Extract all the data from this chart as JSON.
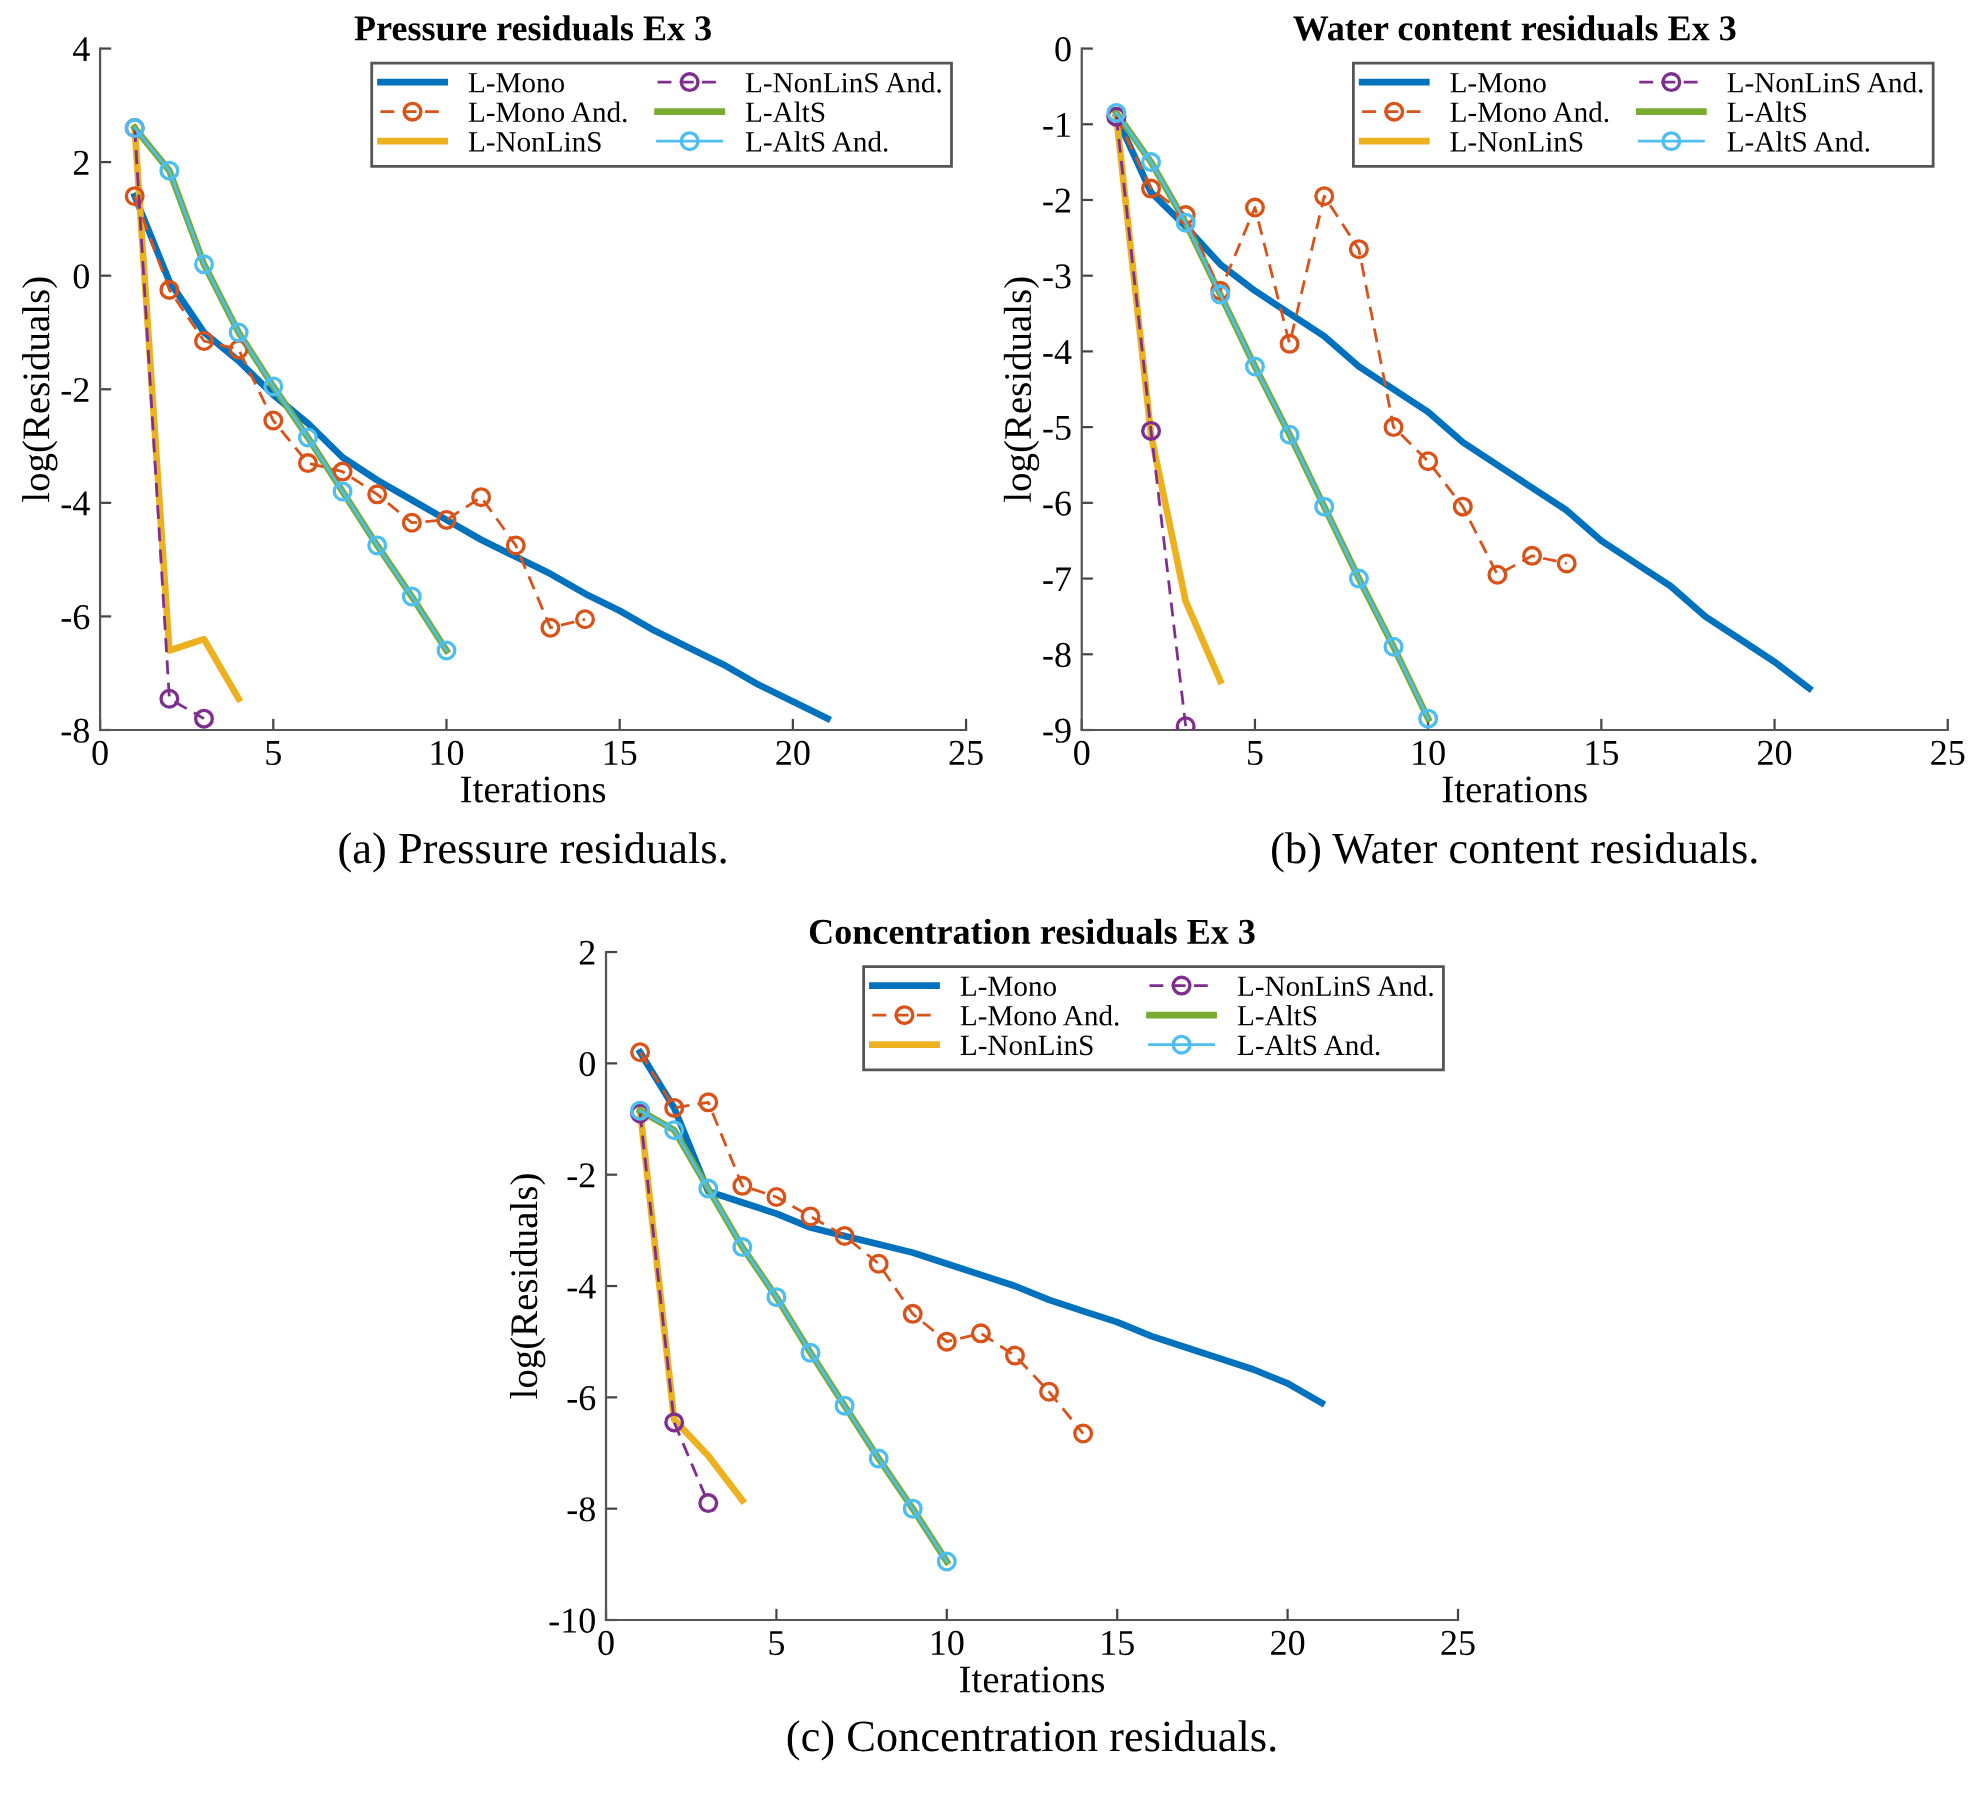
{
  "chart_data": [
    {
      "type": "line",
      "title": "Pressure residuals Ex 3",
      "xlabel": "Iterations",
      "ylabel": "log(Residuals)",
      "annotations": [
        "(a) Pressure residuals."
      ],
      "xlim": [
        0,
        25
      ],
      "xticks": [
        0,
        5,
        10,
        15,
        20,
        25
      ],
      "ylim": [
        -8,
        4
      ],
      "yticks": [
        -8,
        -6,
        -4,
        -2,
        0,
        2,
        4
      ],
      "legend": "top right",
      "series": [
        {
          "name": "L-Mono",
          "color": "#0072bd",
          "line_style": "solid",
          "marker": "none",
          "x": [
            1,
            2,
            3,
            4,
            5,
            6,
            7,
            8,
            9,
            10,
            11,
            12,
            13,
            14,
            15,
            16,
            17,
            18,
            19,
            20,
            21
          ],
          "values": [
            1.4,
            -0.1,
            -1.0,
            -1.5,
            -2.1,
            -2.6,
            -3.2,
            -3.6,
            -3.95,
            -4.3,
            -4.65,
            -4.95,
            -5.25,
            -5.6,
            -5.9,
            -6.25,
            -6.55,
            -6.85,
            -7.2,
            -7.5,
            -7.8
          ]
        },
        {
          "name": "L-Mono And.",
          "color": "#d95319",
          "line_style": "dashed",
          "marker": "circle",
          "x": [
            1,
            2,
            3,
            4,
            5,
            6,
            7,
            8,
            9,
            10,
            11,
            12,
            13,
            14
          ],
          "values": [
            1.4,
            -0.25,
            -1.15,
            -1.3,
            -2.55,
            -3.3,
            -3.45,
            -3.85,
            -4.35,
            -4.3,
            -3.9,
            -4.75,
            -6.2,
            -6.05
          ]
        },
        {
          "name": "L-NonLinS",
          "color": "#edb120",
          "line_style": "solid",
          "marker": "none",
          "x": [
            1,
            2,
            3,
            4
          ],
          "values": [
            2.6,
            -6.6,
            -6.4,
            -7.45
          ]
        },
        {
          "name": "L-NonLinS And.",
          "color": "#7e2f8e",
          "line_style": "dashed",
          "marker": "circle",
          "x": [
            1,
            2,
            3
          ],
          "values": [
            2.6,
            -7.45,
            -7.8
          ]
        },
        {
          "name": "L-AltS",
          "color": "#77ac30",
          "line_style": "solid",
          "marker": "none",
          "x": [
            1,
            2,
            3,
            4,
            5,
            6,
            7,
            8,
            9,
            10
          ],
          "values": [
            2.6,
            1.85,
            0.2,
            -1.0,
            -1.95,
            -2.85,
            -3.8,
            -4.75,
            -5.65,
            -6.6
          ]
        },
        {
          "name": "L-AltS And.",
          "color": "#4dbeee",
          "line_style": "solid",
          "marker": "circle",
          "x": [
            1,
            2,
            3,
            4,
            5,
            6,
            7,
            8,
            9,
            10
          ],
          "values": [
            2.6,
            1.85,
            0.2,
            -1.0,
            -1.95,
            -2.85,
            -3.8,
            -4.75,
            -5.65,
            -6.6
          ]
        }
      ]
    },
    {
      "type": "line",
      "title": "Water content residuals Ex 3",
      "xlabel": "Iterations",
      "ylabel": "log(Residuals)",
      "annotations": [
        "(b) Water content residuals."
      ],
      "xlim": [
        0,
        25
      ],
      "xticks": [
        0,
        5,
        10,
        15,
        20,
        25
      ],
      "ylim": [
        -9,
        0
      ],
      "yticks": [
        -9,
        -8,
        -7,
        -6,
        -5,
        -4,
        -3,
        -2,
        -1,
        0
      ],
      "legend": "top right",
      "series": [
        {
          "name": "L-Mono",
          "color": "#0072bd",
          "line_style": "solid",
          "marker": "none",
          "x": [
            1,
            2,
            3,
            4,
            5,
            6,
            7,
            8,
            9,
            10,
            11,
            12,
            13,
            14,
            15,
            16,
            17,
            18,
            19,
            20,
            21
          ],
          "values": [
            -0.9,
            -1.9,
            -2.35,
            -2.85,
            -3.2,
            -3.5,
            -3.8,
            -4.2,
            -4.5,
            -4.8,
            -5.2,
            -5.5,
            -5.8,
            -6.1,
            -6.5,
            -6.8,
            -7.1,
            -7.5,
            -7.8,
            -8.1,
            -8.45
          ]
        },
        {
          "name": "L-Mono And.",
          "color": "#d95319",
          "line_style": "dashed",
          "marker": "circle",
          "x": [
            1,
            2,
            3,
            4,
            5,
            6,
            7,
            8,
            9,
            10,
            11,
            12,
            13,
            14
          ],
          "values": [
            -0.9,
            -1.85,
            -2.2,
            -3.2,
            -2.1,
            -3.9,
            -1.95,
            -2.65,
            -5.0,
            -5.45,
            -6.05,
            -6.95,
            -6.7,
            -6.8
          ]
        },
        {
          "name": "L-NonLinS",
          "color": "#edb120",
          "line_style": "solid",
          "marker": "none",
          "x": [
            1,
            2,
            3,
            4
          ],
          "values": [
            -0.9,
            -5.1,
            -7.3,
            -8.35
          ]
        },
        {
          "name": "L-NonLinS And.",
          "color": "#7e2f8e",
          "line_style": "dashed",
          "marker": "circle",
          "x": [
            1,
            2,
            3
          ],
          "values": [
            -0.9,
            -5.05,
            -8.95
          ]
        },
        {
          "name": "L-AltS",
          "color": "#77ac30",
          "line_style": "solid",
          "marker": "none",
          "x": [
            1,
            2,
            3,
            4,
            5,
            6,
            7,
            8,
            9,
            10
          ],
          "values": [
            -0.85,
            -1.5,
            -2.3,
            -3.25,
            -4.2,
            -5.1,
            -6.05,
            -7.0,
            -7.9,
            -8.85
          ]
        },
        {
          "name": "L-AltS And.",
          "color": "#4dbeee",
          "line_style": "solid",
          "marker": "circle",
          "x": [
            1,
            2,
            3,
            4,
            5,
            6,
            7,
            8,
            9,
            10
          ],
          "values": [
            -0.85,
            -1.5,
            -2.3,
            -3.25,
            -4.2,
            -5.1,
            -6.05,
            -7.0,
            -7.9,
            -8.85
          ]
        }
      ]
    },
    {
      "type": "line",
      "title": "Concentration residuals Ex 3",
      "xlabel": "Iterations",
      "ylabel": "log(Residuals)",
      "annotations": [
        "(c) Concentration residuals."
      ],
      "xlim": [
        0,
        25
      ],
      "xticks": [
        0,
        5,
        10,
        15,
        20,
        25
      ],
      "ylim": [
        -10,
        2
      ],
      "yticks": [
        -10,
        -8,
        -6,
        -4,
        -2,
        0,
        2
      ],
      "legend": "top right",
      "series": [
        {
          "name": "L-Mono",
          "color": "#0072bd",
          "line_style": "solid",
          "marker": "none",
          "x": [
            1,
            2,
            3,
            4,
            5,
            6,
            7,
            8,
            9,
            10,
            11,
            12,
            13,
            14,
            15,
            16,
            17,
            18,
            19,
            20,
            21
          ],
          "values": [
            0.2,
            -0.8,
            -2.3,
            -2.5,
            -2.7,
            -2.95,
            -3.1,
            -3.25,
            -3.4,
            -3.6,
            -3.8,
            -4.0,
            -4.25,
            -4.45,
            -4.65,
            -4.9,
            -5.1,
            -5.3,
            -5.5,
            -5.75,
            -6.1
          ]
        },
        {
          "name": "L-Mono And.",
          "color": "#d95319",
          "line_style": "dashed",
          "marker": "circle",
          "x": [
            1,
            2,
            3,
            4,
            5,
            6,
            7,
            8,
            9,
            10,
            11,
            12,
            13,
            14
          ],
          "values": [
            0.2,
            -0.8,
            -0.7,
            -2.2,
            -2.4,
            -2.75,
            -3.1,
            -3.6,
            -4.5,
            -5.0,
            -4.85,
            -5.25,
            -5.9,
            -6.65
          ]
        },
        {
          "name": "L-NonLinS",
          "color": "#edb120",
          "line_style": "solid",
          "marker": "none",
          "x": [
            1,
            2,
            3,
            4
          ],
          "values": [
            -0.85,
            -6.4,
            -7.05,
            -7.85
          ]
        },
        {
          "name": "L-NonLinS And.",
          "color": "#7e2f8e",
          "line_style": "dashed",
          "marker": "circle",
          "x": [
            1,
            2,
            3
          ],
          "values": [
            -0.9,
            -6.45,
            -7.9
          ]
        },
        {
          "name": "L-AltS",
          "color": "#77ac30",
          "line_style": "solid",
          "marker": "none",
          "x": [
            1,
            2,
            3,
            4,
            5,
            6,
            7,
            8,
            9,
            10
          ],
          "values": [
            -0.85,
            -1.2,
            -2.25,
            -3.3,
            -4.2,
            -5.2,
            -6.15,
            -7.1,
            -8.0,
            -8.95
          ]
        },
        {
          "name": "L-AltS And.",
          "color": "#4dbeee",
          "line_style": "solid",
          "marker": "circle",
          "x": [
            1,
            2,
            3,
            4,
            5,
            6,
            7,
            8,
            9,
            10
          ],
          "values": [
            -0.85,
            -1.2,
            -2.25,
            -3.3,
            -4.2,
            -5.2,
            -6.15,
            -7.1,
            -8.0,
            -8.95
          ]
        }
      ]
    }
  ]
}
